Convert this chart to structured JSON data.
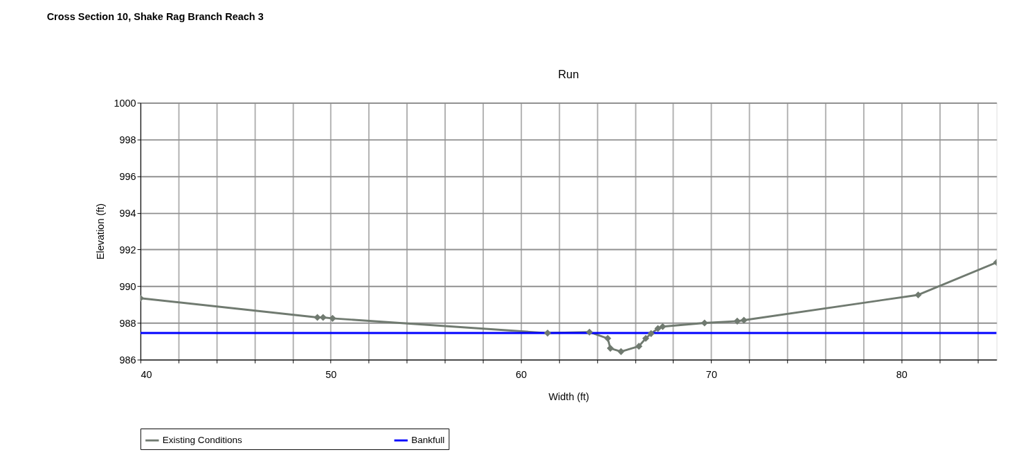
{
  "chart_data": {
    "type": "line",
    "title": "Cross Section 10, Shake Rag Branch Reach 3",
    "subtitle": "Run",
    "xlabel": "Width (ft)",
    "ylabel": "Elevation (ft)",
    "xlim": [
      40,
      85
    ],
    "xticks": [
      40,
      {
        "value": 42,
        "label": null
      },
      {
        "value": 44,
        "label": null
      },
      {
        "value": 46,
        "label": null
      },
      {
        "value": 48,
        "label": null
      },
      50,
      {
        "value": 52,
        "label": null
      },
      {
        "value": 54,
        "label": null
      },
      {
        "value": 56,
        "label": null
      },
      {
        "value": 58,
        "label": null
      },
      60,
      {
        "value": 62,
        "label": null
      },
      {
        "value": 64,
        "label": null
      },
      {
        "value": 66,
        "label": null
      },
      {
        "value": 68,
        "label": null
      },
      70,
      {
        "value": 72,
        "label": null
      },
      {
        "value": 74,
        "label": null
      },
      {
        "value": 76,
        "label": null
      },
      {
        "value": 78,
        "label": null
      },
      80,
      {
        "value": 82,
        "label": null
      },
      {
        "value": 84,
        "label": null
      }
    ],
    "ylim": [
      986,
      1000
    ],
    "yticks": [
      986,
      988,
      990,
      992,
      994,
      996,
      998,
      1000
    ],
    "grid": true,
    "legend": "bottom",
    "series": [
      {
        "name": "Existing Conditions",
        "color": "#707a70",
        "marker": "diamond",
        "x": [
          40,
          49.3,
          49.6,
          50.1,
          61.4,
          63.6,
          64.56,
          64.7,
          65.26,
          66.2,
          66.56,
          66.84,
          67.2,
          67.45,
          69.65,
          71.37,
          71.72,
          80.88,
          85
        ],
        "values": [
          989.35,
          988.3,
          988.3,
          988.25,
          987.45,
          987.5,
          987.16,
          986.62,
          986.44,
          986.73,
          987.16,
          987.42,
          987.7,
          987.8,
          988.0,
          988.1,
          988.15,
          989.53,
          991.3
        ]
      },
      {
        "name": "Bankfull",
        "color": "#0000ff",
        "marker": "none",
        "x": [
          40,
          85
        ],
        "values": [
          987.45,
          987.45
        ]
      }
    ]
  }
}
